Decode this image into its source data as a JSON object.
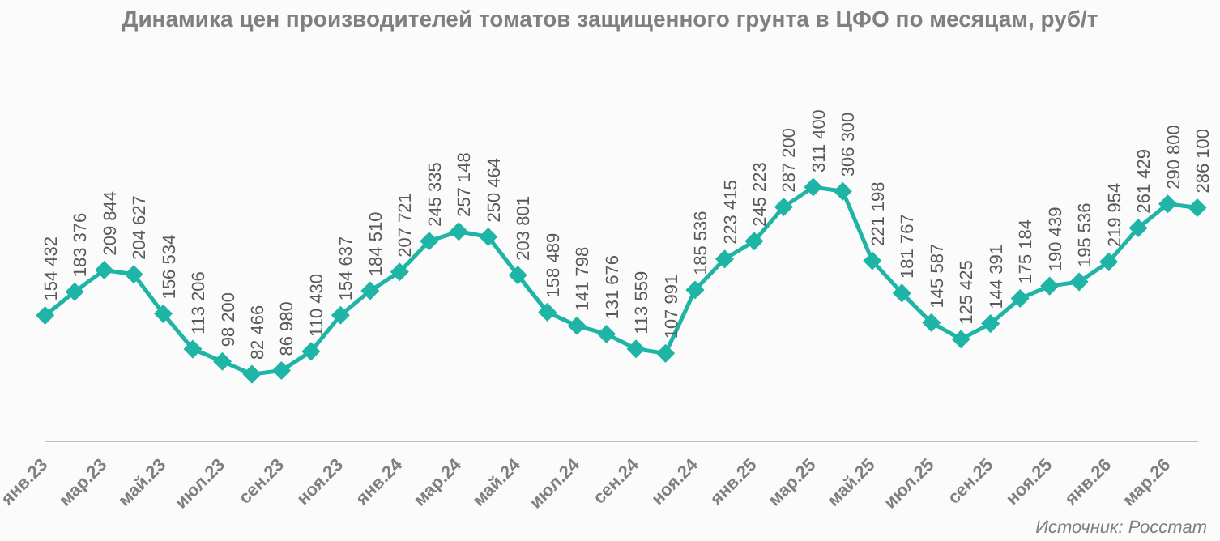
{
  "chart_data": {
    "type": "line",
    "title": "Динамика цен производителей томатов защищенного грунта в ЦФО по месяцам, руб/т",
    "categories": [
      "янв.23",
      null,
      "мар.23",
      null,
      "май.23",
      null,
      "июл.23",
      null,
      "сен.23",
      null,
      "ноя.23",
      null,
      "янв.24",
      null,
      "мар.24",
      null,
      "май.24",
      null,
      "июл.24",
      null,
      "сен.24",
      null,
      "ноя.24",
      null,
      "янв.25",
      null,
      "мар.25",
      null,
      "май.25",
      null,
      "июл.25",
      null,
      "сен.25",
      null,
      "ноя.25",
      null,
      "янв.26",
      null,
      "мар.26",
      null
    ],
    "series": [
      {
        "color": "#1fb5a6",
        "values": [
          154432,
          183376,
          209844,
          204627,
          156534,
          113206,
          98200,
          82466,
          86980,
          110430,
          154637,
          184510,
          207721,
          245335,
          257148,
          250464,
          203801,
          158489,
          141798,
          131676,
          113559,
          107991,
          185536,
          223415,
          245223,
          287200,
          311400,
          306300,
          221198,
          181767,
          145587,
          125425,
          144391,
          175184,
          190439,
          195536,
          219954,
          261429,
          290800,
          286100
        ],
        "value_labels": [
          "154 432",
          "183 376",
          "209 844",
          "204 627",
          "156 534",
          "113 206",
          "98 200",
          "82 466",
          "86 980",
          "110 430",
          "154 637",
          "184 510",
          "207 721",
          "245 335",
          "257 148",
          "250 464",
          "203 801",
          "158 489",
          "141 798",
          "131 676",
          "113 559",
          "107 991",
          "185 536",
          "223 415",
          "245 223",
          "287 200",
          "311 400",
          "306 300",
          "221 198",
          "181 767",
          "145 587",
          "125 425",
          "144 391",
          "175 184",
          "190 439",
          "195 536",
          "219 954",
          "261 429",
          "290 800",
          "286 100"
        ]
      }
    ],
    "marker": "diamond",
    "line_style": "solid",
    "grid": false,
    "legend": false,
    "annotations": [
      "Источник: Росстат"
    ]
  }
}
